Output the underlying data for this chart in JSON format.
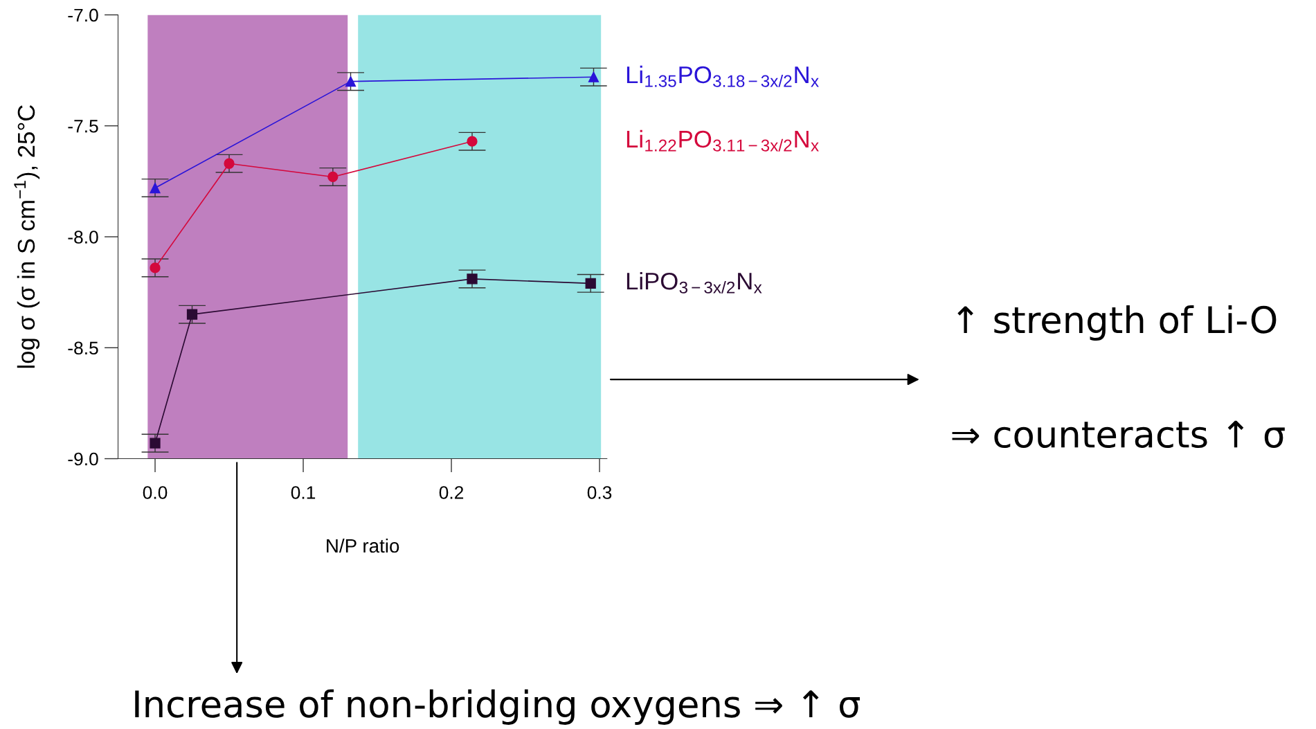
{
  "chart_data": {
    "type": "line",
    "xlabel": "N/P ratio",
    "ylabel": "log σ (σ in S cm$^{−1}$), 25°C",
    "xlim": [
      -0.025,
      0.305
    ],
    "ylim": [
      -9.0,
      -7.0
    ],
    "xticks": [
      {
        "value": 0.0,
        "label": "0.0"
      },
      {
        "value": 0.1,
        "label": "0.1"
      },
      {
        "value": 0.2,
        "label": "0.2"
      },
      {
        "value": 0.3,
        "label": "0.3"
      }
    ],
    "yticks": [
      {
        "value": -7.0,
        "label": "-7.0"
      },
      {
        "value": -7.5,
        "label": "-7.5"
      },
      {
        "value": -8.0,
        "label": "-8.0"
      },
      {
        "value": -8.5,
        "label": "-8.5"
      },
      {
        "value": -9.0,
        "label": "-9.0"
      }
    ],
    "grid": false,
    "series": [
      {
        "name": "Li$_{1.35}$PO$_{3.18−3x/2}$N$_{x}$",
        "color": "#2a14d8",
        "marker": "triangle",
        "x": [
          0.0,
          0.132,
          0.296
        ],
        "values": [
          -7.78,
          -7.3,
          -7.28
        ],
        "errors": [
          0.04,
          0.04,
          0.04
        ]
      },
      {
        "name": "Li$_{1.22}$PO$_{3.11−3x/2}$N$_{x}$",
        "color": "#d4083c",
        "marker": "circle",
        "x": [
          0.0,
          0.05,
          0.12,
          0.214
        ],
        "values": [
          -8.14,
          -7.67,
          -7.73,
          -7.57
        ],
        "errors": [
          0.04,
          0.04,
          0.04,
          0.04
        ]
      },
      {
        "name": "LiPO$_{3−3x/2}$N$_{x}$",
        "color": "#2b0a33",
        "marker": "square",
        "x": [
          0.0,
          0.025,
          0.214,
          0.294
        ],
        "values": [
          -8.93,
          -8.35,
          -8.19,
          -8.21
        ],
        "errors": [
          0.04,
          0.04,
          0.04,
          0.04
        ]
      }
    ],
    "bands": [
      {
        "axis": "x",
        "from": -0.005,
        "to": 0.13,
        "color": "#bf7fbf"
      },
      {
        "axis": "x",
        "from": 0.137,
        "to": 0.301,
        "color": "#98e4e4"
      }
    ],
    "annotations": [
      "↑ strength of Li-O",
      "⇒ counteracts ↑ σ",
      "Increase of non-bridging oxygens ⇒ ↑ σ"
    ]
  }
}
